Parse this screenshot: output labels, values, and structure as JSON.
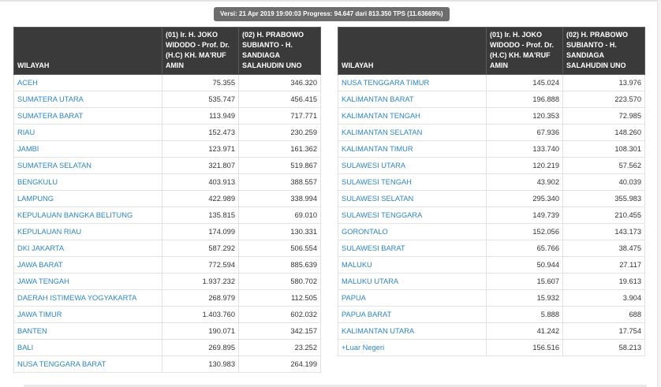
{
  "version_text": "Versi: 21 Apr 2019 19:00:03 Progress: 94.647 dari 813.350 TPS (11.63669%)",
  "headers": {
    "region": "WILAYAH",
    "candidate1": "(01) Ir. H. JOKO WIDODO - Prof. Dr. (H.C) KH. MA'RUF AMIN",
    "candidate2": "(02) H. PRABOWO SUBIANTO - H. SANDIAGA SALAHUDIN UNO"
  },
  "left_rows": [
    {
      "region": "ACEH",
      "c1": "75.355",
      "c2": "346.320"
    },
    {
      "region": "SUMATERA UTARA",
      "c1": "535.747",
      "c2": "456.415"
    },
    {
      "region": "SUMATERA BARAT",
      "c1": "113.949",
      "c2": "717.771"
    },
    {
      "region": "RIAU",
      "c1": "152.473",
      "c2": "230.259"
    },
    {
      "region": "JAMBI",
      "c1": "123.971",
      "c2": "161.362"
    },
    {
      "region": "SUMATERA SELATAN",
      "c1": "321.807",
      "c2": "519.867"
    },
    {
      "region": "BENGKULU",
      "c1": "403.913",
      "c2": "388.557"
    },
    {
      "region": "LAMPUNG",
      "c1": "422.989",
      "c2": "338.994"
    },
    {
      "region": "KEPULAUAN BANGKA BELITUNG",
      "c1": "135.815",
      "c2": "69.010"
    },
    {
      "region": "KEPULAUAN RIAU",
      "c1": "174.099",
      "c2": "130.331"
    },
    {
      "region": "DKI JAKARTA",
      "c1": "587.292",
      "c2": "506.554"
    },
    {
      "region": "JAWA BARAT",
      "c1": "772.594",
      "c2": "885.639"
    },
    {
      "region": "JAWA TENGAH",
      "c1": "1.937.232",
      "c2": "580.702"
    },
    {
      "region": "DAERAH ISTIMEWA YOGYAKARTA",
      "c1": "268.979",
      "c2": "112.505"
    },
    {
      "region": "JAWA TIMUR",
      "c1": "1.403.760",
      "c2": "602.032"
    },
    {
      "region": "BANTEN",
      "c1": "190.071",
      "c2": "342.157"
    },
    {
      "region": "BALI",
      "c1": "269.895",
      "c2": "23.252"
    },
    {
      "region": "NUSA TENGGARA BARAT",
      "c1": "130.983",
      "c2": "264.199"
    }
  ],
  "right_rows": [
    {
      "region": "NUSA TENGGARA TIMUR",
      "c1": "145.024",
      "c2": "13.976"
    },
    {
      "region": "KALIMANTAN BARAT",
      "c1": "196.888",
      "c2": "223.570"
    },
    {
      "region": "KALIMANTAN TENGAH",
      "c1": "120.353",
      "c2": "72.985"
    },
    {
      "region": "KALIMANTAN SELATAN",
      "c1": "67.936",
      "c2": "148.260"
    },
    {
      "region": "KALIMANTAN TIMUR",
      "c1": "133.740",
      "c2": "108.301"
    },
    {
      "region": "SULAWESI UTARA",
      "c1": "120.219",
      "c2": "57.562"
    },
    {
      "region": "SULAWESI TENGAH",
      "c1": "43.902",
      "c2": "40.039"
    },
    {
      "region": "SULAWESI SELATAN",
      "c1": "295.340",
      "c2": "355.983"
    },
    {
      "region": "SULAWESI TENGGARA",
      "c1": "149.739",
      "c2": "210.455"
    },
    {
      "region": "GORONTALO",
      "c1": "152.056",
      "c2": "143.173"
    },
    {
      "region": "SULAWESI BARAT",
      "c1": "65.766",
      "c2": "38.475"
    },
    {
      "region": "MALUKU",
      "c1": "50.944",
      "c2": "27.117"
    },
    {
      "region": "MALUKU UTARA",
      "c1": "15.607",
      "c2": "19.613"
    },
    {
      "region": "PAPUA",
      "c1": "15.932",
      "c2": "3.904"
    },
    {
      "region": "PAPUA BARAT",
      "c1": "5.888",
      "c2": "688"
    },
    {
      "region": "KALIMANTAN UTARA",
      "c1": "41.242",
      "c2": "17.754"
    },
    {
      "region": "+Luar Negeri",
      "c1": "156.516",
      "c2": "58.213"
    }
  ]
}
